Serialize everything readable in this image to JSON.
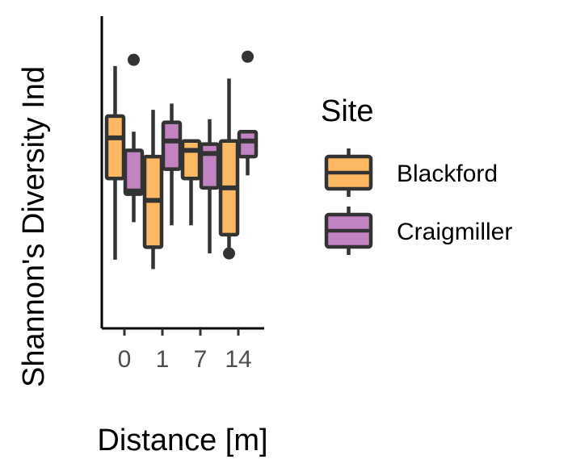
{
  "chart_data": {
    "type": "boxplot",
    "title": "",
    "xlabel": "Distance [m]",
    "ylabel": "Shannon's Diversity Ind",
    "categories": [
      "0",
      "1",
      "7",
      "14"
    ],
    "ylim": [
      0,
      1
    ],
    "show_y_ticks": false,
    "grid": false,
    "legend": {
      "title": "Site",
      "position": "right"
    },
    "series": [
      {
        "name": "Blackford",
        "color": "#FDB863",
        "boxes": [
          {
            "category": "0",
            "min": 0.22,
            "q1": 0.48,
            "median": 0.61,
            "q3": 0.68,
            "max": 0.84,
            "outliers": []
          },
          {
            "category": "1",
            "min": 0.19,
            "q1": 0.26,
            "median": 0.41,
            "q3": 0.55,
            "max": 0.7,
            "outliers": []
          },
          {
            "category": "7",
            "min": 0.33,
            "q1": 0.48,
            "median": 0.57,
            "q3": 0.6,
            "max": 0.6,
            "outliers": []
          },
          {
            "category": "14",
            "min": 0.23,
            "q1": 0.3,
            "median": 0.45,
            "q3": 0.6,
            "max": 0.8,
            "outliers": [
              0.24
            ]
          }
        ]
      },
      {
        "name": "Craigmiller",
        "color": "#C283C2",
        "boxes": [
          {
            "category": "0",
            "min": 0.34,
            "q1": 0.43,
            "median": 0.44,
            "q3": 0.57,
            "max": 0.63,
            "outliers": [
              0.86
            ]
          },
          {
            "category": "1",
            "min": 0.33,
            "q1": 0.51,
            "median": 0.6,
            "q3": 0.66,
            "max": 0.72,
            "outliers": []
          },
          {
            "category": "7",
            "min": 0.24,
            "q1": 0.45,
            "median": 0.56,
            "q3": 0.59,
            "max": 0.67,
            "outliers": []
          },
          {
            "category": "14",
            "min": 0.49,
            "q1": 0.55,
            "median": 0.6,
            "q3": 0.63,
            "max": 0.63,
            "outliers": [
              0.87
            ]
          }
        ]
      }
    ]
  }
}
